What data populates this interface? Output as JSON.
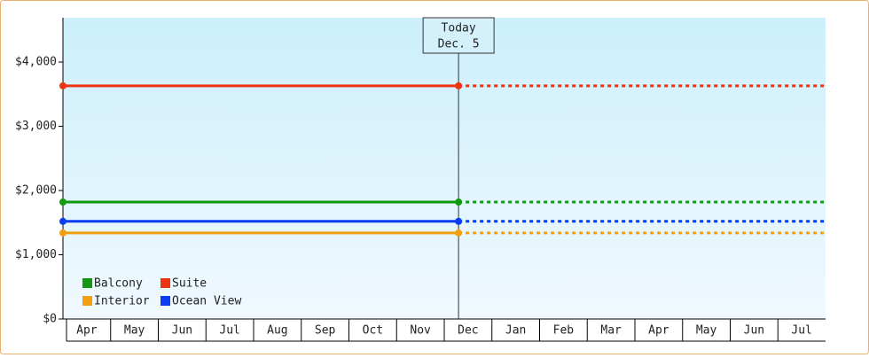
{
  "chart_data": {
    "type": "line",
    "categories": [
      "Apr",
      "May",
      "Jun",
      "Jul",
      "Aug",
      "Sep",
      "Oct",
      "Nov",
      "Dec",
      "Jan",
      "Feb",
      "Mar",
      "Apr",
      "May",
      "Jun",
      "Jul"
    ],
    "x": [
      0,
      8.3
    ],
    "series": [
      {
        "name": "Balcony",
        "color": "#119911",
        "values": [
          1820,
          1820
        ]
      },
      {
        "name": "Suite",
        "color": "#ee3311",
        "values": [
          3630,
          3630
        ]
      },
      {
        "name": "Interior",
        "color": "#f0a010",
        "values": [
          1340,
          1340
        ]
      },
      {
        "name": "Ocean View",
        "color": "#0a3cf0",
        "values": [
          1520,
          1520
        ]
      }
    ],
    "marker": {
      "label": [
        "Today",
        "Dec. 5"
      ],
      "x": 8.3
    },
    "ylim": [
      0,
      4690
    ],
    "yticks": [
      {
        "value": 0,
        "label": "$0"
      },
      {
        "value": 1000,
        "label": "$1,000"
      },
      {
        "value": 2000,
        "label": "$2,000"
      },
      {
        "value": 3000,
        "label": "$3,000"
      },
      {
        "value": 4000,
        "label": "$4,000"
      }
    ],
    "legend": "lower left"
  }
}
